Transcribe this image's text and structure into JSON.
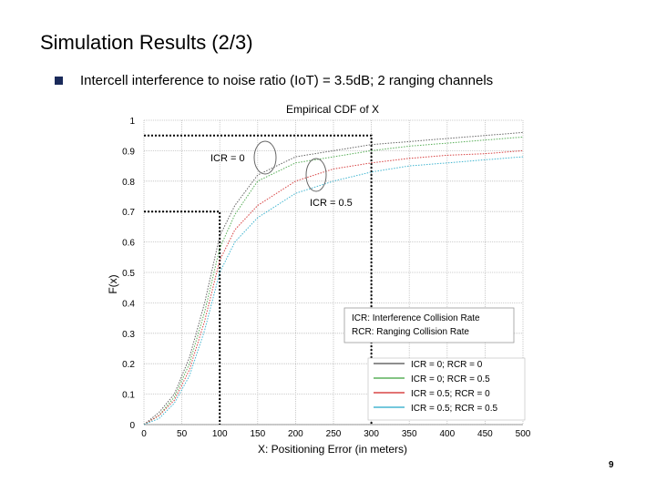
{
  "slide": {
    "title": "Simulation Results (2/3)",
    "bullet": "Intercell interference to noise ratio (IoT) = 3.5dB; 2 ranging channels",
    "page_number": "9"
  },
  "chart_data": {
    "type": "line",
    "title": "Empirical CDF of X",
    "xlabel": "X: Positioning Error (in meters)",
    "ylabel": "F(x)",
    "xlim": [
      0,
      500
    ],
    "ylim": [
      0,
      1
    ],
    "x_ticks": [
      "0",
      "50",
      "100",
      "150",
      "200",
      "250",
      "300",
      "350",
      "400",
      "450",
      "500"
    ],
    "y_ticks": [
      "0",
      "0.1",
      "0.2",
      "0.3",
      "0.4",
      "0.5",
      "0.6",
      "0.7",
      "0.8",
      "0.9",
      "1"
    ],
    "grid": true,
    "legend_position": "bottom-right",
    "legend_note": [
      "ICR: Interference Collision Rate",
      "RCR: Ranging Collision Rate"
    ],
    "annotations": {
      "icr0": "ICR = 0",
      "icr05": "ICR = 0.5"
    },
    "reference_lines": {
      "x100_y": 0.7,
      "x300_y": 0.95
    },
    "series": [
      {
        "name": "ICR = 0; RCR = 0",
        "color": "#4a4a4a",
        "points": [
          [
            0,
            0
          ],
          [
            20,
            0.04
          ],
          [
            40,
            0.1
          ],
          [
            60,
            0.22
          ],
          [
            80,
            0.4
          ],
          [
            100,
            0.62
          ],
          [
            120,
            0.72
          ],
          [
            150,
            0.82
          ],
          [
            200,
            0.88
          ],
          [
            250,
            0.9
          ],
          [
            300,
            0.92
          ],
          [
            350,
            0.93
          ],
          [
            400,
            0.94
          ],
          [
            450,
            0.95
          ],
          [
            500,
            0.96
          ]
        ]
      },
      {
        "name": "ICR = 0; RCR = 0.5",
        "color": "#3aa03a",
        "points": [
          [
            0,
            0
          ],
          [
            20,
            0.03
          ],
          [
            40,
            0.09
          ],
          [
            60,
            0.2
          ],
          [
            80,
            0.37
          ],
          [
            100,
            0.58
          ],
          [
            120,
            0.69
          ],
          [
            150,
            0.8
          ],
          [
            200,
            0.86
          ],
          [
            250,
            0.88
          ],
          [
            300,
            0.9
          ],
          [
            350,
            0.915
          ],
          [
            400,
            0.925
          ],
          [
            450,
            0.935
          ],
          [
            500,
            0.945
          ]
        ]
      },
      {
        "name": "ICR = 0.5; RCR = 0",
        "color": "#d02020",
        "points": [
          [
            0,
            0
          ],
          [
            20,
            0.03
          ],
          [
            40,
            0.08
          ],
          [
            60,
            0.18
          ],
          [
            80,
            0.34
          ],
          [
            100,
            0.54
          ],
          [
            120,
            0.64
          ],
          [
            150,
            0.72
          ],
          [
            200,
            0.8
          ],
          [
            250,
            0.84
          ],
          [
            300,
            0.86
          ],
          [
            350,
            0.875
          ],
          [
            400,
            0.885
          ],
          [
            450,
            0.89
          ],
          [
            500,
            0.9
          ]
        ]
      },
      {
        "name": "ICR = 0.5; RCR = 0.5",
        "color": "#20a8c8",
        "points": [
          [
            0,
            0
          ],
          [
            20,
            0.02
          ],
          [
            40,
            0.07
          ],
          [
            60,
            0.16
          ],
          [
            80,
            0.31
          ],
          [
            100,
            0.5
          ],
          [
            120,
            0.6
          ],
          [
            150,
            0.68
          ],
          [
            200,
            0.76
          ],
          [
            250,
            0.8
          ],
          [
            300,
            0.83
          ],
          [
            350,
            0.85
          ],
          [
            400,
            0.86
          ],
          [
            450,
            0.87
          ],
          [
            500,
            0.88
          ]
        ]
      }
    ]
  }
}
